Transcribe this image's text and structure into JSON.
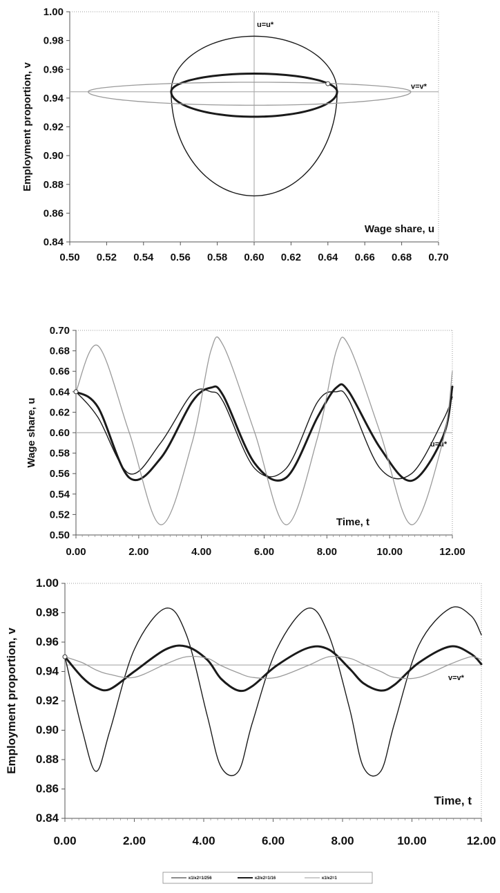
{
  "chart_data": [
    {
      "type": "line",
      "xlabel": "Wage share, u",
      "ylabel": "Employment proportion, v",
      "xlim": [
        0.5,
        0.7
      ],
      "ylim": [
        0.84,
        1.0
      ],
      "xticks": [
        "0.50",
        "0.52",
        "0.54",
        "0.56",
        "0.58",
        "0.60",
        "0.62",
        "0.64",
        "0.66",
        "0.68",
        "0.70"
      ],
      "yticks": [
        "0.84",
        "0.86",
        "0.88",
        "0.90",
        "0.92",
        "0.94",
        "0.96",
        "0.98",
        "1.00"
      ],
      "grid": false,
      "reference_lines": [
        {
          "orientation": "vertical",
          "value": 0.6,
          "label": "u=u*"
        },
        {
          "orientation": "horizontal",
          "value": 0.9444,
          "label": "v=v*"
        }
      ],
      "initial_point": {
        "x": 0.64,
        "y": 0.95
      },
      "series": [
        {
          "style": "thin-black",
          "closed_orbit": {
            "center": [
              0.6,
              0.9444
            ],
            "u_range": [
              0.555,
              0.645
            ],
            "v_range": [
              0.872,
              0.983
            ]
          }
        },
        {
          "style": "thick-black",
          "closed_orbit": {
            "center": [
              0.6,
              0.9444
            ],
            "u_range": [
              0.555,
              0.645
            ],
            "v_range": [
              0.927,
              0.957
            ]
          }
        },
        {
          "style": "thin-gray",
          "closed_orbit": {
            "center": [
              0.6,
              0.9444
            ],
            "u_range": [
              0.51,
              0.685
            ],
            "v_range": [
              0.935,
              0.951
            ]
          }
        }
      ]
    },
    {
      "type": "line",
      "xlabel": "Time, t",
      "ylabel": "Wage share, u",
      "xlim": [
        0,
        12
      ],
      "ylim": [
        0.5,
        0.7
      ],
      "xticks": [
        "0.00",
        "2.00",
        "4.00",
        "6.00",
        "8.00",
        "10.00",
        "12.00"
      ],
      "yticks": [
        "0.50",
        "0.52",
        "0.54",
        "0.56",
        "0.58",
        "0.60",
        "0.62",
        "0.64",
        "0.66",
        "0.68",
        "0.70"
      ],
      "grid": false,
      "reference_lines": [
        {
          "orientation": "horizontal",
          "value": 0.6,
          "label": "u=u*"
        }
      ],
      "initial_point": {
        "x": 0,
        "y": 0.64
      },
      "x": [
        0.0,
        0.7,
        1.7,
        2.7,
        3.7,
        4.3,
        4.7,
        5.7,
        6.7,
        7.7,
        8.3,
        8.7,
        9.7,
        10.7,
        11.7,
        12.0
      ],
      "series": [
        {
          "style": "thin-black",
          "values": [
            0.64,
            0.615,
            0.56,
            0.59,
            0.638,
            0.64,
            0.63,
            0.565,
            0.565,
            0.63,
            0.64,
            0.632,
            0.565,
            0.56,
            0.612,
            0.635
          ]
        },
        {
          "style": "thick-black",
          "values": [
            0.64,
            0.625,
            0.556,
            0.575,
            0.63,
            0.644,
            0.636,
            0.57,
            0.556,
            0.615,
            0.644,
            0.64,
            0.585,
            0.553,
            0.596,
            0.645
          ]
        },
        {
          "style": "thin-gray",
          "values": [
            0.64,
            0.685,
            0.6,
            0.51,
            0.59,
            0.68,
            0.685,
            0.6,
            0.51,
            0.595,
            0.68,
            0.685,
            0.6,
            0.51,
            0.592,
            0.66
          ]
        }
      ]
    },
    {
      "type": "line",
      "xlabel": "Time, t",
      "ylabel": "Employment proportion, v",
      "xlim": [
        0,
        12
      ],
      "ylim": [
        0.84,
        1.0
      ],
      "xticks": [
        "0.00",
        "2.00",
        "4.00",
        "6.00",
        "8.00",
        "10.00",
        "12.00"
      ],
      "yticks": [
        "0.84",
        "0.86",
        "0.88",
        "0.90",
        "0.92",
        "0.94",
        "0.96",
        "0.98",
        "1.00"
      ],
      "grid": false,
      "reference_lines": [
        {
          "orientation": "horizontal",
          "value": 0.9444,
          "label": "v=v*"
        }
      ],
      "initial_point": {
        "x": 0,
        "y": 0.95
      },
      "x": [
        0.0,
        0.5,
        0.9,
        1.3,
        2.0,
        2.9,
        3.5,
        4.1,
        4.5,
        5.0,
        5.4,
        6.1,
        7.0,
        7.6,
        8.2,
        8.6,
        9.1,
        9.5,
        10.2,
        11.1,
        11.7,
        12.0
      ],
      "series": [
        {
          "style": "thin-black",
          "values": [
            0.95,
            0.9,
            0.872,
            0.9,
            0.955,
            0.983,
            0.965,
            0.91,
            0.875,
            0.872,
            0.905,
            0.955,
            0.983,
            0.965,
            0.915,
            0.875,
            0.872,
            0.905,
            0.958,
            0.983,
            0.978,
            0.965
          ]
        },
        {
          "style": "thick-black",
          "values": [
            0.95,
            0.936,
            0.929,
            0.928,
            0.94,
            0.955,
            0.957,
            0.948,
            0.935,
            0.927,
            0.93,
            0.944,
            0.956,
            0.955,
            0.942,
            0.932,
            0.927,
            0.931,
            0.946,
            0.957,
            0.952,
            0.945
          ]
        },
        {
          "style": "thin-gray",
          "values": [
            0.95,
            0.946,
            0.941,
            0.938,
            0.936,
            0.945,
            0.95,
            0.949,
            0.944,
            0.939,
            0.936,
            0.936,
            0.944,
            0.95,
            0.949,
            0.945,
            0.94,
            0.936,
            0.936,
            0.945,
            0.95,
            0.948
          ]
        }
      ]
    }
  ],
  "legend": {
    "placement": "bottom-center",
    "entries": [
      "κ1/κ2=1/256",
      "κ2/κ2=1/16",
      "κ1/κ2=1"
    ]
  },
  "styles": {
    "thin-black": {
      "color": "#1a1a1a",
      "width": 1.4
    },
    "thick-black": {
      "color": "#1a1a1a",
      "width": 3.0
    },
    "thin-gray": {
      "color": "#9a9a9a",
      "width": 1.3
    },
    "ref_color": "#b0b0b0"
  }
}
